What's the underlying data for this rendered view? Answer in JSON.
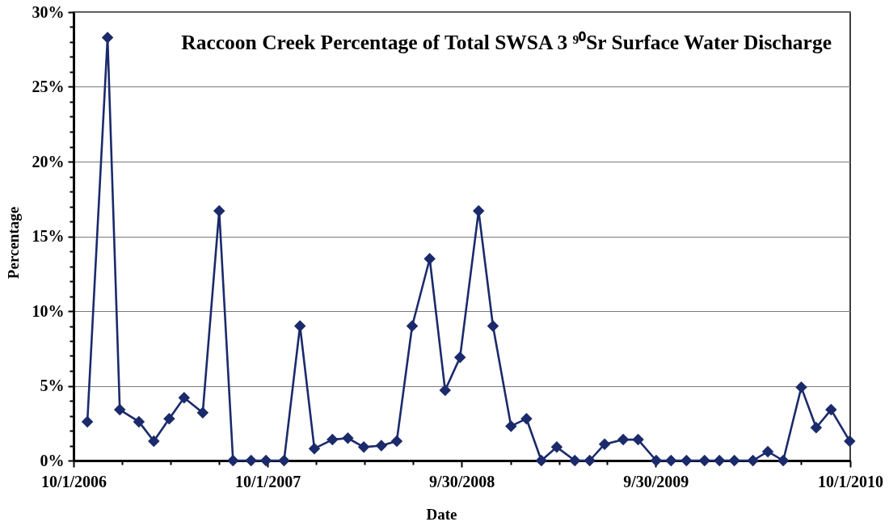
{
  "chart_data": {
    "type": "line",
    "title": "Raccoon Creek Percentage of Total SWSA 3 ⁹⁰Sr Surface Water Discharge",
    "xlabel": "Date",
    "ylabel": "Percentage",
    "x": [
      "2006-10-27",
      "2006-12-04",
      "2006-12-27",
      "2007-02-01",
      "2007-03-01",
      "2007-03-30",
      "2007-04-27",
      "2007-06-01",
      "2007-07-02",
      "2007-07-28",
      "2007-08-31",
      "2007-09-28",
      "2007-11-01",
      "2007-12-01",
      "2007-12-28",
      "2008-01-31",
      "2008-02-29",
      "2008-03-30",
      "2008-05-02",
      "2008-05-31",
      "2008-06-29",
      "2008-08-01",
      "2008-08-30",
      "2008-09-27",
      "2008-11-01",
      "2008-11-28",
      "2009-01-01",
      "2009-01-30",
      "2009-02-27",
      "2009-03-28",
      "2009-05-01",
      "2009-05-29",
      "2009-06-26",
      "2009-07-31",
      "2009-08-28",
      "2009-10-01",
      "2009-10-29",
      "2009-11-27",
      "2009-12-31",
      "2010-01-28",
      "2010-02-25",
      "2010-04-01",
      "2010-04-29",
      "2010-05-28",
      "2010-07-01",
      "2010-07-29",
      "2010-08-26",
      "2010-09-30"
    ],
    "series": [
      {
        "color": "#1b2a6b",
        "values": [
          2.6,
          28.3,
          3.4,
          2.6,
          1.3,
          2.8,
          4.2,
          3.2,
          16.7,
          0,
          0,
          0,
          0,
          9.0,
          0.8,
          1.4,
          1.5,
          0.9,
          1.0,
          1.3,
          9.0,
          13.5,
          4.7,
          6.9,
          16.7,
          9.0,
          2.3,
          2.8,
          0,
          0.9,
          0,
          0,
          1.1,
          1.4,
          1.4,
          0,
          0,
          0,
          0,
          0,
          0,
          0,
          0.6,
          0,
          4.9,
          2.2,
          3.4,
          1.3
        ]
      }
    ],
    "xlim": [
      "2006-10-01",
      "2010-10-01"
    ],
    "xticks": [
      {
        "value": "2006-10-01",
        "label": "10/1/2006"
      },
      {
        "value": "2006-12-31",
        "label": null
      },
      {
        "value": "2007-04-01",
        "label": null
      },
      {
        "value": "2007-07-01",
        "label": null
      },
      {
        "value": "2007-10-01",
        "label": "10/1/2007"
      },
      {
        "value": "2007-12-31",
        "label": null
      },
      {
        "value": "2008-04-01",
        "label": null
      },
      {
        "value": "2008-07-01",
        "label": null
      },
      {
        "value": "2008-09-30",
        "label": "9/30/2008"
      },
      {
        "value": "2008-12-31",
        "label": null
      },
      {
        "value": "2009-04-01",
        "label": null
      },
      {
        "value": "2009-07-01",
        "label": null
      },
      {
        "value": "2009-09-30",
        "label": "9/30/2009"
      },
      {
        "value": "2009-12-31",
        "label": null
      },
      {
        "value": "2010-04-01",
        "label": null
      },
      {
        "value": "2010-07-01",
        "label": null
      },
      {
        "value": "2010-10-01",
        "label": "10/1/2010"
      }
    ],
    "ylim": [
      0,
      30
    ],
    "yticks": [
      {
        "value": 0,
        "label": "0%"
      },
      {
        "value": 1,
        "label": null
      },
      {
        "value": 2,
        "label": null
      },
      {
        "value": 3,
        "label": null
      },
      {
        "value": 4,
        "label": null
      },
      {
        "value": 5,
        "label": "5%"
      },
      {
        "value": 6,
        "label": null
      },
      {
        "value": 7,
        "label": null
      },
      {
        "value": 8,
        "label": null
      },
      {
        "value": 9,
        "label": null
      },
      {
        "value": 10,
        "label": "10%"
      },
      {
        "value": 11,
        "label": null
      },
      {
        "value": 12,
        "label": null
      },
      {
        "value": 13,
        "label": null
      },
      {
        "value": 14,
        "label": null
      },
      {
        "value": 15,
        "label": "15%"
      },
      {
        "value": 16,
        "label": null
      },
      {
        "value": 17,
        "label": null
      },
      {
        "value": 18,
        "label": null
      },
      {
        "value": 19,
        "label": null
      },
      {
        "value": 20,
        "label": "20%"
      },
      {
        "value": 21,
        "label": null
      },
      {
        "value": 22,
        "label": null
      },
      {
        "value": 23,
        "label": null
      },
      {
        "value": 24,
        "label": null
      },
      {
        "value": 25,
        "label": "25%"
      },
      {
        "value": 26,
        "label": null
      },
      {
        "value": 27,
        "label": null
      },
      {
        "value": 28,
        "label": null
      },
      {
        "value": 29,
        "label": null
      },
      {
        "value": 30,
        "label": "30%"
      }
    ],
    "grid": "y",
    "marker": "diamond",
    "line_style": "solid"
  }
}
